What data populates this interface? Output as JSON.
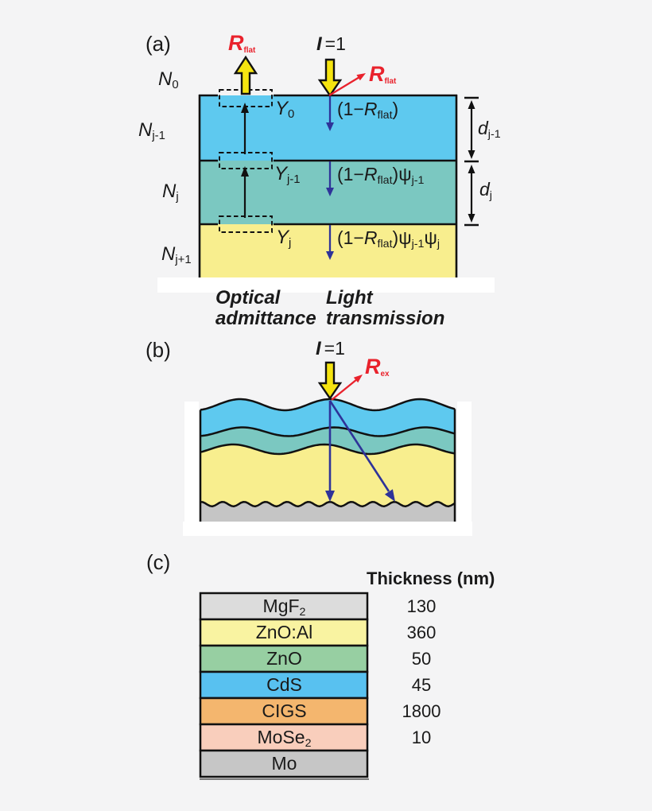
{
  "colors": {
    "background": "#f4f4f5",
    "layer_blue": "#5ec9ef",
    "layer_teal": "#7bc8c1",
    "layer_yellow": "#f8ee8e",
    "layer_gray": "#c5c5c5",
    "arrow_yellow": "#f5e410",
    "arrow_red": "#e9222c",
    "arrow_navy": "#2e3399",
    "outline": "#111111"
  },
  "panel_a": {
    "label": "(a)",
    "reflect_top": {
      "t": "R",
      "s": "flat"
    },
    "incident": {
      "t": "I",
      "eq": "=1"
    },
    "reflect_diag": {
      "t": "R",
      "s": "flat"
    },
    "media": [
      {
        "t": "N",
        "s": "0"
      },
      {
        "t": "N",
        "s": "j-1"
      },
      {
        "t": "N",
        "s": "j"
      },
      {
        "t": "N",
        "s": "j+1"
      }
    ],
    "admittance": [
      {
        "t": "Y",
        "s": "0"
      },
      {
        "t": "Y",
        "s": "j-1"
      },
      {
        "t": "Y",
        "s": "j"
      }
    ],
    "transmission": [
      {
        "t1": "(1−",
        "r": "R",
        "rs": "flat",
        "t2": ")"
      },
      {
        "t1": "(1−",
        "r": "R",
        "rs": "flat",
        "t2": ")",
        "p1": "ψ",
        "ps1": "j-1"
      },
      {
        "t1": "(1−",
        "r": "R",
        "rs": "flat",
        "t2": ")",
        "p1": "ψ",
        "ps1": "j-1",
        "p2": "ψ",
        "ps2": "j"
      }
    ],
    "thickness_marks": [
      {
        "t": "d",
        "s": "j-1"
      },
      {
        "t": "d",
        "s": "j"
      }
    ],
    "captions": {
      "admittance_line1": "Optical",
      "admittance_line2": "admittance",
      "transmission_line1": "Light",
      "transmission_line2": "transmission"
    }
  },
  "panel_b": {
    "label": "(b)",
    "incident": {
      "t": "I",
      "eq": "=1"
    },
    "reflect": {
      "t": "R",
      "s": "ex"
    }
  },
  "panel_c": {
    "label": "(c)",
    "header": "Thickness (nm)",
    "layers": [
      {
        "name": "MgF",
        "sub": "2",
        "thickness": "130",
        "color": "#dcdcdc"
      },
      {
        "name": "ZnO:Al",
        "thickness": "360",
        "color": "#f9f3a1"
      },
      {
        "name": "ZnO",
        "thickness": "50",
        "color": "#97cfa2"
      },
      {
        "name": "CdS",
        "thickness": "45",
        "color": "#58c1f0"
      },
      {
        "name": "CIGS",
        "thickness": "1800",
        "color": "#f4b66e"
      },
      {
        "name": "MoSe",
        "sub": "2",
        "thickness": "10",
        "color": "#f9cebc"
      },
      {
        "name": "Mo",
        "color": "#c6c6c6"
      }
    ]
  }
}
